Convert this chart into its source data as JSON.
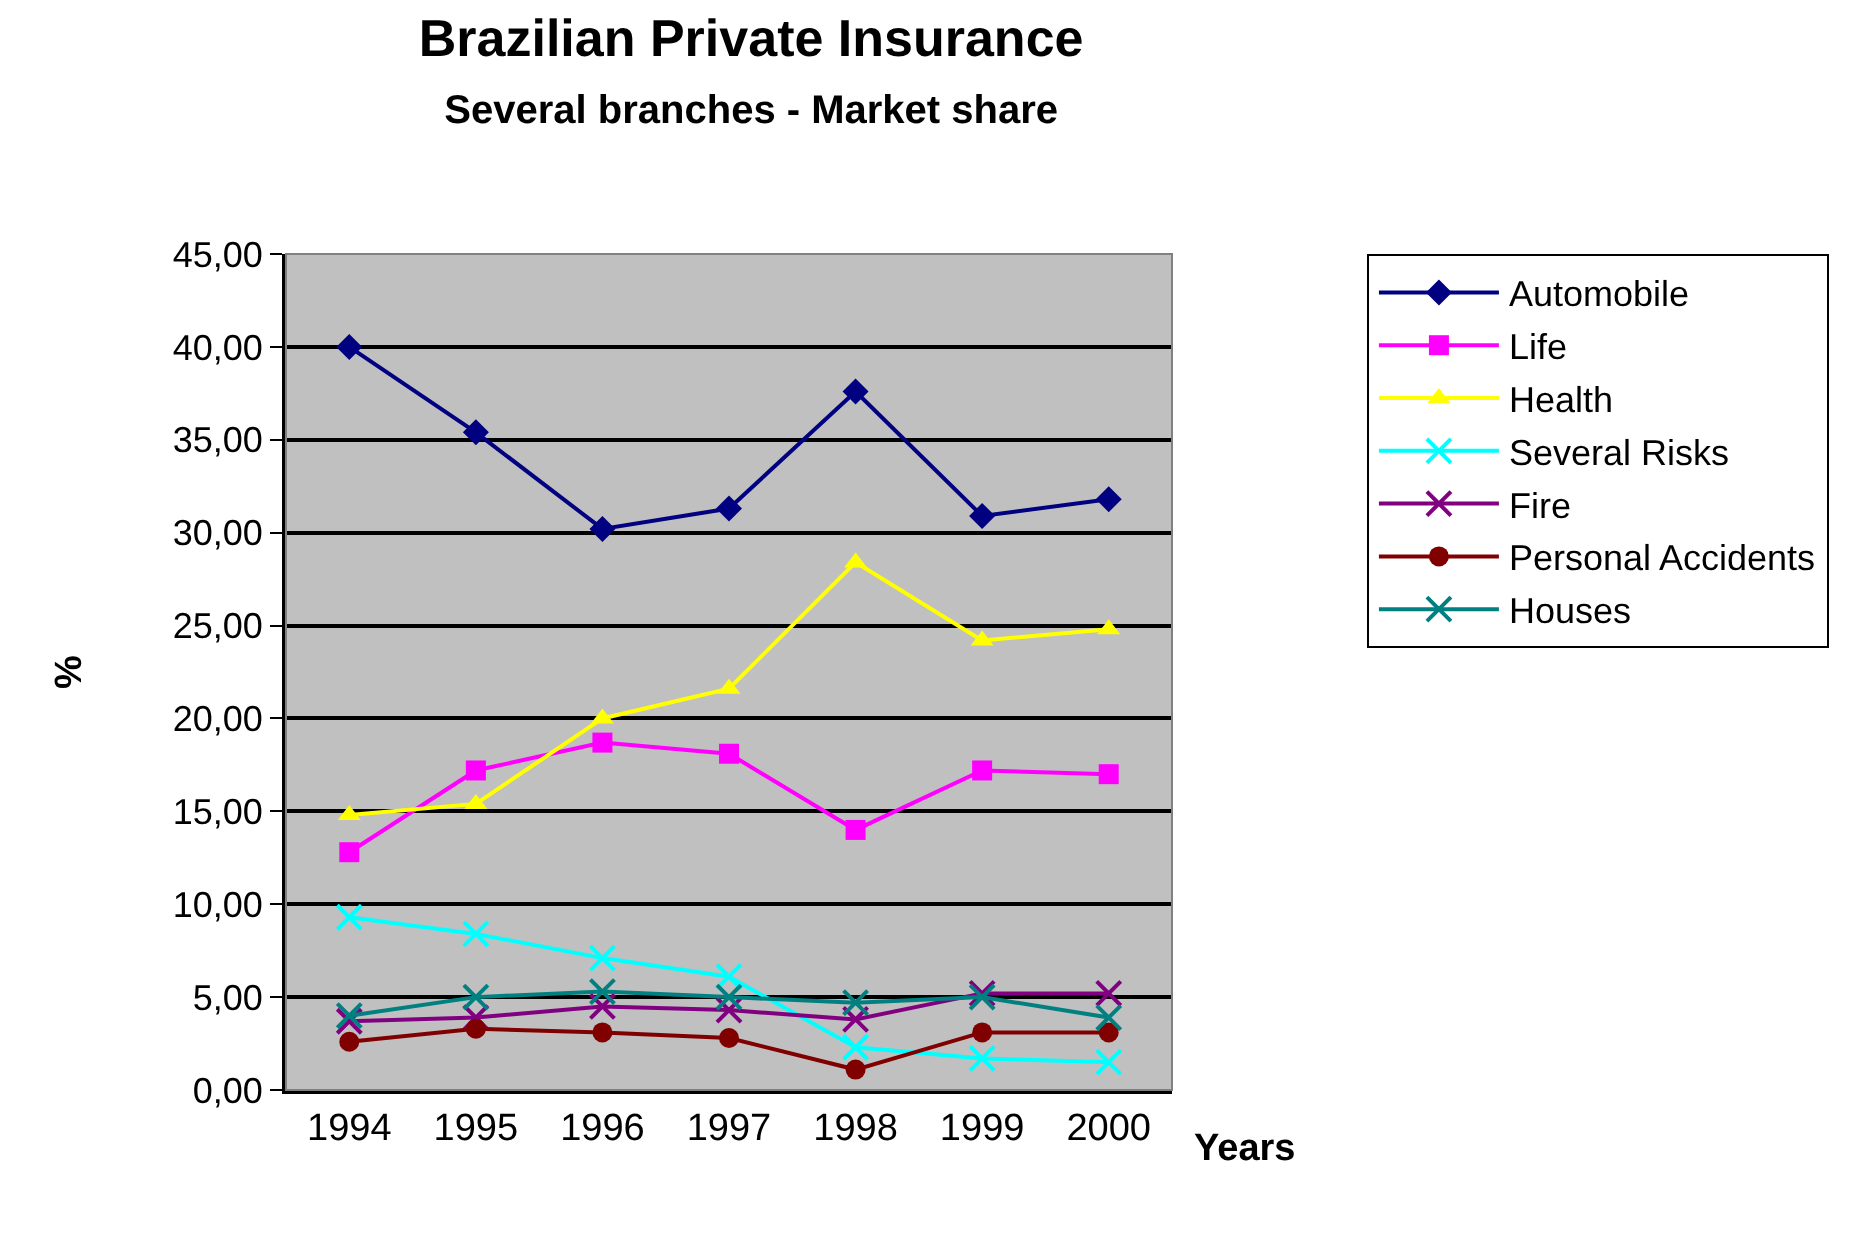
{
  "chart_data": {
    "type": "line",
    "title": "Brazilian Private Insurance",
    "subtitle": "Several branches - Market share",
    "xlabel": "Years",
    "ylabel": "%",
    "categories": [
      "1994",
      "1995",
      "1996",
      "1997",
      "1998",
      "1999",
      "2000"
    ],
    "ylim": [
      0,
      45
    ],
    "yticks": [
      {
        "value": 0,
        "label": "0,00"
      },
      {
        "value": 5,
        "label": "5,00"
      },
      {
        "value": 10,
        "label": "10,00"
      },
      {
        "value": 15,
        "label": "15,00"
      },
      {
        "value": 20,
        "label": "20,00"
      },
      {
        "value": 25,
        "label": "25,00"
      },
      {
        "value": 30,
        "label": "30,00"
      },
      {
        "value": 35,
        "label": "35,00"
      },
      {
        "value": 40,
        "label": "40,00"
      },
      {
        "value": 45,
        "label": "45,00"
      }
    ],
    "grid": "y",
    "legend": "right",
    "line_style": "solid",
    "series": [
      {
        "name": "Automobile",
        "color": "#000080",
        "marker": "diamond",
        "values": [
          40.0,
          35.4,
          30.2,
          31.3,
          37.6,
          30.9,
          31.8
        ]
      },
      {
        "name": "Life",
        "color": "#ff00ff",
        "marker": "square",
        "values": [
          12.8,
          17.2,
          18.7,
          18.1,
          14.0,
          17.2,
          17.0
        ]
      },
      {
        "name": "Health",
        "color": "#ffff00",
        "marker": "triangle",
        "values": [
          14.8,
          15.4,
          20.0,
          21.6,
          28.4,
          24.2,
          24.8
        ]
      },
      {
        "name": "Several Risks",
        "color": "#00ffff",
        "marker": "cross",
        "values": [
          9.3,
          8.4,
          7.1,
          6.1,
          2.3,
          1.7,
          1.5
        ]
      },
      {
        "name": "Fire",
        "color": "#800080",
        "marker": "cross",
        "values": [
          3.7,
          3.9,
          4.5,
          4.3,
          3.8,
          5.2,
          5.2
        ]
      },
      {
        "name": "Personal Accidents",
        "color": "#800000",
        "marker": "circle",
        "values": [
          2.6,
          3.3,
          3.1,
          2.8,
          1.1,
          3.1,
          3.1
        ]
      },
      {
        "name": "Houses",
        "color": "#008080",
        "marker": "cross",
        "values": [
          4.0,
          5.0,
          5.3,
          5.0,
          4.7,
          5.0,
          3.9
        ]
      }
    ]
  }
}
